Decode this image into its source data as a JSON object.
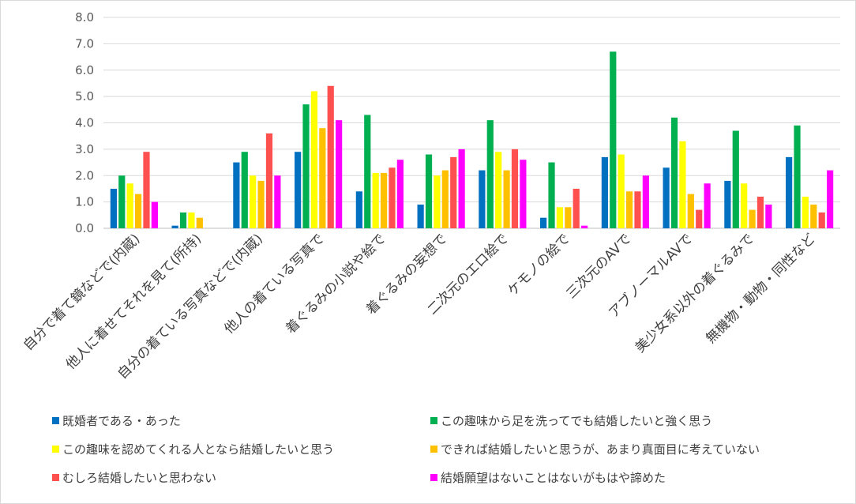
{
  "chart_data": {
    "type": "bar",
    "ylim": [
      0,
      8
    ],
    "yticks": [
      "0.0",
      "1.0",
      "2.0",
      "3.0",
      "4.0",
      "5.0",
      "6.0",
      "7.0",
      "8.0"
    ],
    "grid": true,
    "legend_position": "bottom",
    "categories": [
      "自分で着て鏡などで(内蔵)",
      "他人に着せてそれを見て(所持)",
      "自分の着ている写真などで(内蔵)",
      "他人の着ている写真で",
      "着ぐるみの小説や絵で",
      "着ぐるみの妄想で",
      "二次元のエロ絵で",
      "ケモノの絵で",
      "三次元のAVで",
      "アブノーマルAVで",
      "美少女系以外の着ぐるみで",
      "無機物・動物・同性など"
    ],
    "series": [
      {
        "name": "既婚者である・あった",
        "color": "#0070c0",
        "values": [
          1.5,
          0.1,
          2.5,
          2.9,
          1.4,
          0.9,
          2.2,
          0.4,
          2.7,
          2.3,
          1.8,
          2.7
        ]
      },
      {
        "name": "この趣味から足を洗ってでも結婚したいと強く思う",
        "color": "#00b050",
        "values": [
          2.0,
          0.6,
          2.9,
          4.7,
          4.3,
          2.8,
          4.1,
          2.5,
          6.7,
          4.2,
          3.7,
          3.9
        ]
      },
      {
        "name": "この趣味を認めてくれる人となら結婚したいと思う",
        "color": "#ffff00",
        "values": [
          1.7,
          0.6,
          2.0,
          5.2,
          2.1,
          2.0,
          2.9,
          0.8,
          2.8,
          3.3,
          1.7,
          1.2
        ]
      },
      {
        "name": "できれば結婚したいと思うが、あまり真面目に考えていない",
        "color": "#ffc000",
        "values": [
          1.3,
          0.4,
          1.8,
          3.8,
          2.1,
          2.2,
          2.2,
          0.8,
          1.4,
          1.3,
          0.7,
          0.9
        ]
      },
      {
        "name": "むしろ結婚したいと思わない",
        "color": "#ff5050",
        "values": [
          2.9,
          0.0,
          3.6,
          5.4,
          2.3,
          2.7,
          3.0,
          1.5,
          1.4,
          0.7,
          1.2,
          0.6
        ]
      },
      {
        "name": "結婚願望はないことはないがもはや諦めた",
        "color": "#ff00ff",
        "values": [
          1.0,
          0.0,
          2.0,
          4.1,
          2.6,
          3.0,
          2.6,
          0.1,
          2.0,
          1.7,
          0.9,
          2.2
        ]
      }
    ]
  }
}
